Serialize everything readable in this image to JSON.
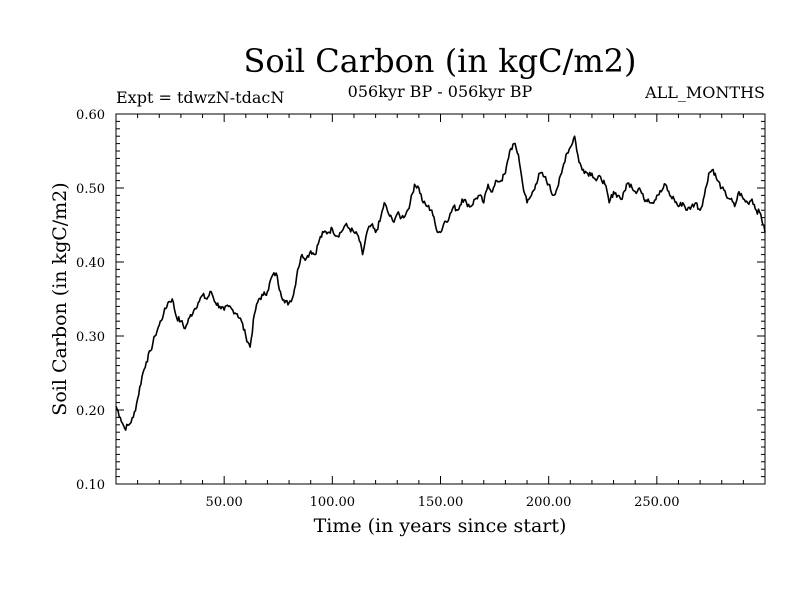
{
  "chart_data": {
    "type": "line",
    "title": "Soil Carbon (in kgC/m2)",
    "subtitle_left": "Expt = tdwzN-tdacN",
    "subtitle_center": "056kyr BP - 056kyr BP",
    "subtitle_right": "ALL_MONTHS",
    "xlabel": "Time (in years since start)",
    "ylabel": "Soil Carbon (in kgC/m2)",
    "xlim": [
      0,
      300
    ],
    "ylim": [
      0.1,
      0.6
    ],
    "xticks": [
      50,
      100,
      150,
      200,
      250
    ],
    "xtick_labels": [
      "50.00",
      "100.00",
      "150.00",
      "200.00",
      "250.00"
    ],
    "yticks": [
      0.1,
      0.2,
      0.3,
      0.4,
      0.5,
      0.6
    ],
    "ytick_labels": [
      "0.10",
      "0.20",
      "0.30",
      "0.40",
      "0.50",
      "0.60"
    ],
    "grid": false,
    "series": [
      {
        "name": "Soil Carbon",
        "x": [
          0,
          2,
          4,
          6,
          8,
          10,
          12,
          14,
          16,
          18,
          20,
          22,
          24,
          26,
          28,
          30,
          32,
          34,
          36,
          38,
          40,
          42,
          44,
          46,
          48,
          50,
          52,
          54,
          56,
          58,
          60,
          62,
          64,
          66,
          68,
          70,
          72,
          74,
          76,
          78,
          80,
          82,
          84,
          86,
          88,
          90,
          92,
          94,
          96,
          98,
          100,
          102,
          104,
          106,
          108,
          110,
          112,
          114,
          116,
          118,
          120,
          122,
          124,
          126,
          128,
          130,
          132,
          134,
          136,
          138,
          140,
          142,
          144,
          146,
          148,
          150,
          152,
          154,
          156,
          158,
          160,
          162,
          164,
          166,
          168,
          170,
          172,
          174,
          176,
          178,
          180,
          182,
          184,
          186,
          188,
          190,
          192,
          194,
          196,
          198,
          200,
          202,
          204,
          206,
          208,
          210,
          212,
          214,
          216,
          218,
          220,
          222,
          224,
          226,
          228,
          230,
          232,
          234,
          236,
          238,
          240,
          242,
          244,
          246,
          248,
          250,
          252,
          254,
          256,
          258,
          260,
          262,
          264,
          266,
          268,
          270,
          272,
          274,
          276,
          278,
          280,
          282,
          284,
          286,
          288,
          290,
          292,
          294,
          296,
          298,
          300
        ],
        "values": [
          0.205,
          0.19,
          0.175,
          0.18,
          0.19,
          0.215,
          0.245,
          0.265,
          0.28,
          0.3,
          0.315,
          0.33,
          0.345,
          0.35,
          0.325,
          0.32,
          0.31,
          0.325,
          0.335,
          0.345,
          0.355,
          0.35,
          0.36,
          0.345,
          0.34,
          0.335,
          0.34,
          0.335,
          0.33,
          0.32,
          0.3,
          0.285,
          0.33,
          0.35,
          0.355,
          0.36,
          0.38,
          0.385,
          0.36,
          0.345,
          0.345,
          0.355,
          0.39,
          0.41,
          0.405,
          0.415,
          0.41,
          0.43,
          0.44,
          0.44,
          0.445,
          0.435,
          0.44,
          0.45,
          0.445,
          0.44,
          0.435,
          0.41,
          0.44,
          0.45,
          0.44,
          0.455,
          0.48,
          0.465,
          0.455,
          0.465,
          0.46,
          0.465,
          0.48,
          0.505,
          0.5,
          0.48,
          0.475,
          0.47,
          0.445,
          0.44,
          0.455,
          0.46,
          0.475,
          0.47,
          0.485,
          0.48,
          0.475,
          0.485,
          0.49,
          0.48,
          0.505,
          0.495,
          0.51,
          0.51,
          0.52,
          0.55,
          0.56,
          0.545,
          0.505,
          0.48,
          0.49,
          0.505,
          0.52,
          0.515,
          0.505,
          0.49,
          0.5,
          0.52,
          0.545,
          0.555,
          0.57,
          0.535,
          0.525,
          0.52,
          0.52,
          0.51,
          0.515,
          0.505,
          0.48,
          0.495,
          0.49,
          0.485,
          0.505,
          0.505,
          0.495,
          0.5,
          0.485,
          0.485,
          0.48,
          0.49,
          0.495,
          0.505,
          0.49,
          0.485,
          0.475,
          0.48,
          0.47,
          0.475,
          0.48,
          0.47,
          0.49,
          0.52,
          0.525,
          0.51,
          0.5,
          0.49,
          0.485,
          0.475,
          0.495,
          0.485,
          0.48,
          0.485,
          0.47,
          0.465,
          0.44
        ]
      }
    ]
  }
}
